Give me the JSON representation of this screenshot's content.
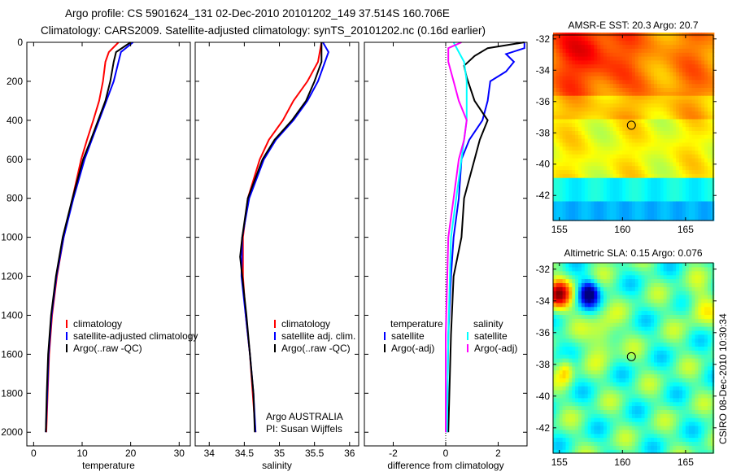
{
  "title_line1": "Argo profile: CS 5901624_131 02-Dec-2010 20101202_149 37.514S 160.706E",
  "title_line2": "Climatology: CARS2009. Satellite-adjusted climatology: synTS_20101202.nc (0.16d earlier)",
  "side_label": "CSIRO 08-Dec-2010 10:30:34",
  "colors": {
    "climatology": "#ff0000",
    "satellite": "#0000ff",
    "argo": "#000000",
    "sal_satellite": "#00ffff",
    "sal_argo": "#ff00ff"
  },
  "chart_data": [
    {
      "type": "line",
      "xlabel": "temperature",
      "ylabel": "",
      "xlim": [
        -1.4,
        32.3
      ],
      "ylim": [
        2070,
        0
      ],
      "xticks": [
        "0",
        "10",
        "20",
        "30"
      ],
      "xtick_values": [
        0,
        10,
        20,
        30
      ],
      "yticks": [
        "0",
        "200",
        "400",
        "600",
        "800",
        "1000",
        "1200",
        "1400",
        "1600",
        "1800",
        "2000"
      ],
      "ytick_values": [
        0,
        200,
        400,
        600,
        800,
        1000,
        1200,
        1400,
        1600,
        1800,
        2000
      ],
      "legend": [
        "climatology",
        "satellite-adjusted climatology",
        "Argo(..raw -QC)"
      ],
      "series": [
        {
          "name": "climatology",
          "color": "#ff0000",
          "points": [
            [
              17.5,
              0
            ],
            [
              15.5,
              50
            ],
            [
              14.8,
              100
            ],
            [
              14.3,
              200
            ],
            [
              13.5,
              300
            ],
            [
              12.3,
              400
            ],
            [
              11,
              500
            ],
            [
              9.8,
              600
            ],
            [
              8,
              800
            ],
            [
              6.2,
              1000
            ],
            [
              4.8,
              1200
            ],
            [
              3.8,
              1400
            ],
            [
              3.2,
              1600
            ],
            [
              2.9,
              1800
            ],
            [
              2.6,
              2000
            ]
          ]
        },
        {
          "name": "satellite-adjusted climatology",
          "color": "#0000ff",
          "points": [
            [
              20.5,
              0
            ],
            [
              18,
              50
            ],
            [
              17.5,
              100
            ],
            [
              16.5,
              200
            ],
            [
              15,
              300
            ],
            [
              13.5,
              400
            ],
            [
              12,
              500
            ],
            [
              10.5,
              600
            ],
            [
              8.2,
              800
            ],
            [
              6.2,
              1000
            ],
            [
              4.7,
              1200
            ],
            [
              3.7,
              1400
            ],
            [
              3.1,
              1600
            ],
            [
              2.8,
              1800
            ],
            [
              2.5,
              2000
            ]
          ]
        },
        {
          "name": "Argo(..raw -QC)",
          "color": "#000000",
          "points": [
            [
              20,
              0
            ],
            [
              17,
              50
            ],
            [
              16.5,
              100
            ],
            [
              15.8,
              200
            ],
            [
              14.8,
              300
            ],
            [
              13.3,
              400
            ],
            [
              11.8,
              500
            ],
            [
              10.2,
              600
            ],
            [
              8,
              800
            ],
            [
              6,
              1000
            ],
            [
              4.6,
              1200
            ],
            [
              3.6,
              1400
            ],
            [
              3,
              1600
            ],
            [
              2.7,
              1800
            ],
            [
              2.5,
              2000
            ]
          ]
        }
      ]
    },
    {
      "type": "line",
      "xlabel": "salinity",
      "xlim": [
        33.8,
        36.13
      ],
      "ylim": [
        2070,
        0
      ],
      "xticks": [
        "34",
        "34.5",
        "35",
        "35.5",
        "36"
      ],
      "xtick_values": [
        34,
        34.5,
        35,
        35.5,
        36
      ],
      "legend": [
        "climatology",
        "satellite adj. clim.",
        "Argo(..raw -QC)"
      ],
      "annotation": [
        "Argo AUSTRALIA",
        "PI: Susan Wijffels"
      ],
      "series": [
        {
          "name": "climatology",
          "color": "#ff0000",
          "points": [
            [
              35.6,
              0
            ],
            [
              35.55,
              100
            ],
            [
              35.4,
              200
            ],
            [
              35.2,
              300
            ],
            [
              35.05,
              400
            ],
            [
              34.85,
              500
            ],
            [
              34.72,
              600
            ],
            [
              34.55,
              800
            ],
            [
              34.48,
              1000
            ],
            [
              34.48,
              1200
            ],
            [
              34.52,
              1400
            ],
            [
              34.58,
              1600
            ],
            [
              34.62,
              1800
            ],
            [
              34.66,
              2000
            ]
          ]
        },
        {
          "name": "satellite adj. clim.",
          "color": "#0000ff",
          "points": [
            [
              35.62,
              0
            ],
            [
              35.7,
              50
            ],
            [
              35.65,
              100
            ],
            [
              35.55,
              200
            ],
            [
              35.4,
              300
            ],
            [
              35.2,
              400
            ],
            [
              34.95,
              500
            ],
            [
              34.78,
              600
            ],
            [
              34.57,
              800
            ],
            [
              34.47,
              1000
            ],
            [
              34.46,
              1200
            ],
            [
              34.52,
              1400
            ],
            [
              34.58,
              1600
            ],
            [
              34.63,
              1800
            ],
            [
              34.66,
              2000
            ]
          ]
        },
        {
          "name": "Argo(..raw -QC)",
          "color": "#000000",
          "points": [
            [
              35.6,
              0
            ],
            [
              35.6,
              100
            ],
            [
              35.5,
              200
            ],
            [
              35.38,
              300
            ],
            [
              35.18,
              400
            ],
            [
              34.93,
              500
            ],
            [
              34.76,
              600
            ],
            [
              34.55,
              800
            ],
            [
              34.47,
              1000
            ],
            [
              34.44,
              1100
            ],
            [
              34.47,
              1200
            ],
            [
              34.53,
              1400
            ],
            [
              34.58,
              1600
            ],
            [
              34.63,
              1800
            ],
            [
              34.65,
              2000
            ]
          ]
        }
      ]
    },
    {
      "type": "line",
      "xlabel": "difference from climatology",
      "xlim": [
        -3.1,
        3.1
      ],
      "ylim": [
        2070,
        0
      ],
      "xticks": [
        "-2",
        "0",
        "2"
      ],
      "xtick_values": [
        -2,
        0,
        2
      ],
      "legend_temperature": {
        "title": "temperature",
        "items": [
          "satellite",
          "Argo(-adj)"
        ]
      },
      "legend_salinity": {
        "title": "salinity",
        "items": [
          "satellite",
          "Argo(-adj)"
        ]
      },
      "series": [
        {
          "name": "temperature satellite",
          "color": "#0000ff",
          "points": [
            [
              3,
              0
            ],
            [
              3,
              30
            ],
            [
              2.3,
              60
            ],
            [
              2.6,
              100
            ],
            [
              2.3,
              150
            ],
            [
              1.7,
              200
            ],
            [
              1.6,
              300
            ],
            [
              1.4,
              400
            ],
            [
              0.9,
              500
            ],
            [
              0.6,
              600
            ],
            [
              0.5,
              800
            ],
            [
              0.3,
              1000
            ],
            [
              0.2,
              1200
            ],
            [
              0.1,
              1500
            ],
            [
              0.05,
              2000
            ]
          ]
        },
        {
          "name": "temperature Argo(-adj)",
          "color": "#000000",
          "points": [
            [
              3,
              0
            ],
            [
              1.6,
              30
            ],
            [
              1.1,
              70
            ],
            [
              0.7,
              120
            ],
            [
              0.8,
              180
            ],
            [
              1.1,
              300
            ],
            [
              1.6,
              400
            ],
            [
              1.3,
              500
            ],
            [
              1.1,
              600
            ],
            [
              0.7,
              800
            ],
            [
              0.6,
              1000
            ],
            [
              0.3,
              1200
            ],
            [
              0.2,
              1500
            ],
            [
              0.1,
              2000
            ]
          ]
        },
        {
          "name": "salinity satellite",
          "color": "#00ffff",
          "points": [
            [
              0.3,
              0
            ],
            [
              0.5,
              50
            ],
            [
              0.7,
              100
            ],
            [
              0.8,
              200
            ],
            [
              0.8,
              400
            ],
            [
              0.7,
              500
            ],
            [
              0.6,
              600
            ],
            [
              0.4,
              800
            ],
            [
              0.2,
              1000
            ],
            [
              0.1,
              1500
            ],
            [
              0.05,
              2000
            ]
          ]
        },
        {
          "name": "salinity Argo(-adj)",
          "color": "#ff00ff",
          "points": [
            [
              0.6,
              0
            ],
            [
              0.1,
              30
            ],
            [
              0.1,
              100
            ],
            [
              0.3,
              200
            ],
            [
              0.5,
              300
            ],
            [
              0.8,
              400
            ],
            [
              0.7,
              500
            ],
            [
              0.5,
              600
            ],
            [
              0.3,
              800
            ],
            [
              0.1,
              1000
            ],
            [
              0,
              1500
            ],
            [
              0,
              2000
            ]
          ]
        }
      ]
    },
    {
      "type": "heatmap",
      "title": "AMSR-E SST: 20.3 Argo: 20.7",
      "xlim": [
        154.5,
        167.2
      ],
      "ylim": [
        -43.6,
        -31.75
      ],
      "xticks": [
        "155",
        "160",
        "165"
      ],
      "xtick_values": [
        155,
        160,
        165
      ],
      "yticks": [
        "-32",
        "-34",
        "-36",
        "-38",
        "-40",
        "-42"
      ],
      "ytick_values": [
        -32,
        -34,
        -36,
        -38,
        -40,
        -42
      ],
      "marker": {
        "lon": 160.706,
        "lat": -37.514
      }
    },
    {
      "type": "heatmap",
      "title": "Altimetric SLA: 0.15 Argo: 0.076",
      "xlim": [
        154.5,
        167.2
      ],
      "ylim": [
        -43.6,
        -31.6
      ],
      "xticks": [
        "155",
        "160",
        "165"
      ],
      "xtick_values": [
        155,
        160,
        165
      ],
      "yticks": [
        "-32",
        "-34",
        "-36",
        "-38",
        "-40",
        "-42"
      ],
      "ytick_values": [
        -32,
        -34,
        -36,
        -38,
        -40,
        -42
      ],
      "marker": {
        "lon": 160.706,
        "lat": -37.514
      }
    }
  ]
}
